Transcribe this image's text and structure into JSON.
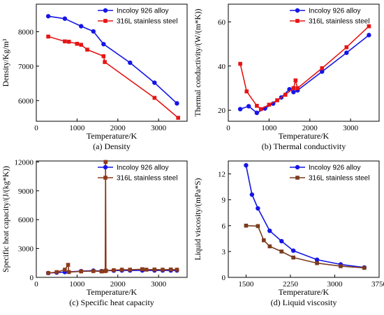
{
  "chart_data": [
    {
      "type": "line",
      "panel_id": "a",
      "caption": "(a) Density",
      "xlabel": "Temperature/K",
      "ylabel": "Density/Kg/m³",
      "xlim": [
        0,
        3700
      ],
      "ylim": [
        5400,
        8800
      ],
      "xticks": [
        0,
        1000,
        2000,
        3000
      ],
      "yticks": [
        6000,
        7000,
        8000
      ],
      "legend_position": "top-right",
      "series": [
        {
          "name": "Incoloy 926 alloy",
          "color": "#1515e6",
          "marker": "circle",
          "x": [
            293,
            700,
            1100,
            1400,
            1650,
            2300,
            2900,
            3450
          ],
          "y": [
            8450,
            8380,
            8160,
            8010,
            7640,
            7100,
            6520,
            5920
          ]
        },
        {
          "name": "316L stainless steel",
          "color": "#e61515",
          "marker": "square",
          "x": [
            293,
            700,
            800,
            1000,
            1100,
            1250,
            1650,
            1680,
            2900,
            3480
          ],
          "y": [
            7860,
            7720,
            7710,
            7650,
            7620,
            7480,
            7290,
            7120,
            6080,
            5500
          ]
        }
      ]
    },
    {
      "type": "line",
      "panel_id": "b",
      "caption": "(b) Thermal conductivity",
      "xlabel": "Temperature/K",
      "ylabel": "Thermal conductivity/(W/(m*K))",
      "xlim": [
        0,
        3700
      ],
      "ylim": [
        15,
        68
      ],
      "xticks": [
        0,
        1000,
        2000,
        3000
      ],
      "yticks": [
        20,
        40,
        60
      ],
      "legend_position": "top-right",
      "series": [
        {
          "name": "Incoloy 926 alloy",
          "color": "#1515e6",
          "marker": "circle",
          "x": [
            293,
            500,
            700,
            900,
            1100,
            1300,
            1500,
            1600,
            1700,
            2300,
            2900,
            3450
          ],
          "y": [
            20.5,
            21.8,
            18.8,
            20.8,
            23.0,
            25.8,
            29.5,
            28.2,
            29.0,
            37.5,
            46.0,
            54.0
          ]
        },
        {
          "name": "316L stainless steel",
          "color": "#e61515",
          "marker": "square",
          "x": [
            293,
            450,
            700,
            800,
            1000,
            1200,
            1400,
            1600,
            1650,
            1700,
            2300,
            2900,
            3450
          ],
          "y": [
            41.0,
            28.5,
            22.0,
            20.5,
            22.5,
            24.5,
            27.0,
            30.0,
            33.5,
            30.0,
            39.0,
            48.5,
            58.0
          ]
        }
      ]
    },
    {
      "type": "line",
      "panel_id": "c",
      "caption": "(c) Specific heat capacity",
      "xlabel": "Temperature/K",
      "ylabel": "Specific heat capacity/(J/(kg*K))",
      "xlim": [
        0,
        3700
      ],
      "ylim": [
        0,
        12100
      ],
      "xticks": [
        0,
        1000,
        2000,
        3000
      ],
      "yticks": [
        0,
        3000,
        6000,
        9000,
        12000
      ],
      "legend_position": "top-right",
      "series": [
        {
          "name": "Incoloy 926 alloy",
          "color": "#1515e6",
          "marker": "circle",
          "x": [
            293,
            500,
            700,
            1100,
            1400,
            1600,
            1700,
            1900,
            2100,
            2300,
            2600,
            2900,
            3100,
            3300,
            3450
          ],
          "y": [
            450,
            500,
            550,
            650,
            700,
            650,
            700,
            700,
            720,
            720,
            720,
            720,
            720,
            720,
            720
          ]
        },
        {
          "name": "316L stainless steel",
          "color": "#8b3a1a",
          "marker": "square",
          "x": [
            293,
            500,
            700,
            780,
            800,
            1100,
            1400,
            1600,
            1690,
            1700,
            1710,
            1900,
            2100,
            2300,
            2600,
            2700,
            2900,
            3100,
            3300,
            3450
          ],
          "y": [
            450,
            550,
            800,
            1300,
            550,
            620,
            650,
            620,
            650,
            12000,
            700,
            750,
            800,
            800,
            850,
            800,
            820,
            800,
            820,
            800
          ]
        }
      ]
    },
    {
      "type": "line",
      "panel_id": "d",
      "caption": "(d) Liquid viscosity",
      "xlabel": "Temperature/K",
      "ylabel": "Liquid viscosity/(mPa*S)",
      "xlim": [
        1200,
        3750
      ],
      "ylim": [
        0,
        13.5
      ],
      "xticks": [
        1500,
        2250,
        3000,
        3750
      ],
      "yticks": [
        0,
        3,
        6,
        9,
        12
      ],
      "legend_position": "top-right",
      "series": [
        {
          "name": "Incoloy 926 alloy",
          "color": "#1515e6",
          "marker": "circle",
          "x": [
            1500,
            1600,
            1700,
            1900,
            2100,
            2300,
            2700,
            3100,
            3500
          ],
          "y": [
            13.0,
            9.6,
            8.0,
            5.4,
            4.2,
            3.1,
            2.05,
            1.5,
            1.15
          ]
        },
        {
          "name": "316L stainless steel",
          "color": "#7a3b1e",
          "marker": "square",
          "x": [
            1500,
            1700,
            1800,
            1900,
            2100,
            2300,
            2700,
            3100,
            3500
          ],
          "y": [
            6.0,
            5.95,
            4.3,
            3.6,
            3.0,
            2.3,
            1.65,
            1.3,
            1.1
          ]
        }
      ]
    }
  ]
}
